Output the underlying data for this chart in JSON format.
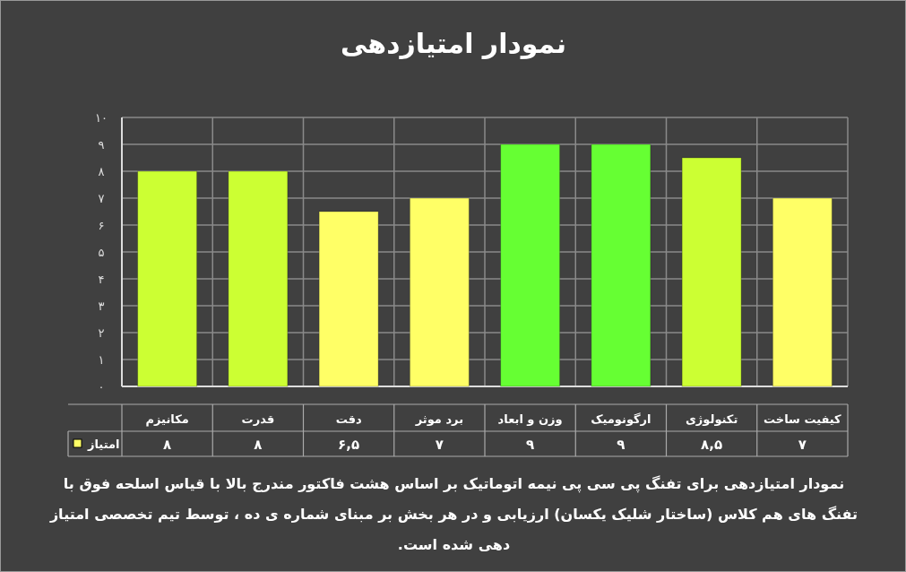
{
  "chart_data": {
    "type": "bar",
    "title": "نمودار امتیازدهی",
    "categories": [
      "مکانیزم",
      "قدرت",
      "دقت",
      "برد موثر",
      "وزن و ابعاد",
      "ارگونومیک",
      "تکنولوژی",
      "کیفیت ساخت"
    ],
    "series": [
      {
        "name": "امتیاز",
        "color": "#ffff66",
        "colors": [
          "#ccff33",
          "#ccff33",
          "#ffff66",
          "#ffff66",
          "#66ff33",
          "#66ff33",
          "#ccff33",
          "#ffff66"
        ],
        "values": [
          8,
          8,
          6.5,
          7,
          9,
          9,
          8.5,
          7
        ],
        "value_labels": [
          "۸",
          "۸",
          "۶,۵",
          "۷",
          "۹",
          "۹",
          "۸,۵",
          "۷"
        ]
      }
    ],
    "ylim": [
      0,
      10
    ],
    "yticks": [
      {
        "value": 0,
        "label": "۰"
      },
      {
        "value": 1,
        "label": "۱"
      },
      {
        "value": 2,
        "label": "۲"
      },
      {
        "value": 3,
        "label": "۳"
      },
      {
        "value": 4,
        "label": "۴"
      },
      {
        "value": 5,
        "label": "۵"
      },
      {
        "value": 6,
        "label": "۶"
      },
      {
        "value": 7,
        "label": "۷"
      },
      {
        "value": 8,
        "label": "۸"
      },
      {
        "value": 9,
        "label": "۹"
      },
      {
        "value": 10,
        "label": "۱۰"
      }
    ],
    "grid": true,
    "legend": "bottom left",
    "annotations": [
      "نمودار امتیازدهی برای تفنگ پی سی پی نیمه اتوماتیک بر اساس هشت فاکتور مندرج بالا با قیاس اسلحه فوق با تفنگ های هم کلاس (ساختار شلیک یکسان) ارزیابی و در هر بخش بر مبنای شماره ی ده ، توسط تیم تخصصی امتیاز دهی شده است."
    ]
  }
}
